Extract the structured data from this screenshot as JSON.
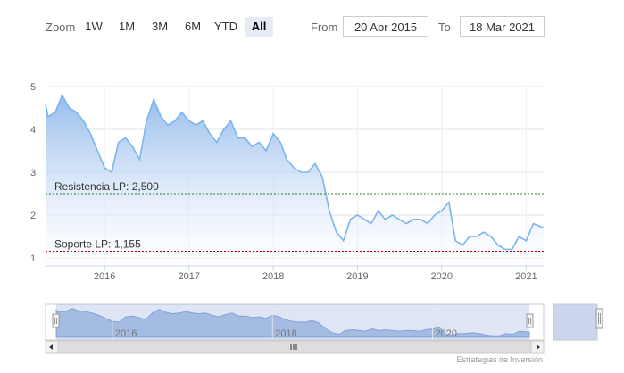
{
  "toolbar": {
    "zoom_label": "Zoom",
    "buttons": [
      "1W",
      "1M",
      "3M",
      "6M",
      "YTD",
      "All"
    ],
    "active": "All",
    "from_label": "From",
    "from_value": "20 Abr 2015",
    "to_label": "To",
    "to_value": "18 Mar 2021"
  },
  "chart_data": {
    "type": "area",
    "y_ticks": [
      "5",
      "4",
      "3",
      "2",
      "1"
    ],
    "ylim": [
      1,
      5
    ],
    "x_ticks": [
      "2016",
      "2017",
      "2018",
      "2019",
      "2020",
      "2021"
    ],
    "grid": true,
    "series": [
      {
        "x": [
          "2015-04-20",
          "2015-05-01",
          "2015-06-01",
          "2015-07-01",
          "2015-08-01",
          "2015-09-01",
          "2015-10-01",
          "2015-11-01",
          "2015-12-01",
          "2016-01-01",
          "2016-02-01",
          "2016-03-01",
          "2016-04-01",
          "2016-05-01",
          "2016-06-01",
          "2016-07-01",
          "2016-08-01",
          "2016-09-01",
          "2016-10-01",
          "2016-11-01",
          "2016-12-01",
          "2017-01-01",
          "2017-02-01",
          "2017-03-01",
          "2017-04-01",
          "2017-05-01",
          "2017-06-01",
          "2017-07-01",
          "2017-08-01",
          "2017-09-01",
          "2017-10-01",
          "2017-11-01",
          "2017-12-01",
          "2018-01-01",
          "2018-02-01",
          "2018-03-01",
          "2018-04-01",
          "2018-05-01",
          "2018-06-01",
          "2018-07-01",
          "2018-08-01",
          "2018-09-01",
          "2018-10-01",
          "2018-11-01",
          "2018-12-01",
          "2019-01-01",
          "2019-02-01",
          "2019-03-01",
          "2019-04-01",
          "2019-05-01",
          "2019-06-01",
          "2019-07-01",
          "2019-08-01",
          "2019-09-01",
          "2019-10-01",
          "2019-11-01",
          "2019-12-01",
          "2020-01-01",
          "2020-02-01",
          "2020-03-01",
          "2020-04-01",
          "2020-05-01",
          "2020-06-01",
          "2020-07-01",
          "2020-08-01",
          "2020-09-01",
          "2020-10-01",
          "2020-11-01",
          "2020-12-01",
          "2021-01-01",
          "2021-02-01",
          "2021-03-18"
        ],
        "y": [
          4.6,
          4.3,
          4.4,
          4.8,
          4.5,
          4.4,
          4.2,
          3.9,
          3.5,
          3.1,
          3.0,
          3.7,
          3.8,
          3.6,
          3.3,
          4.2,
          4.7,
          4.3,
          4.1,
          4.2,
          4.4,
          4.2,
          4.1,
          4.2,
          3.9,
          3.7,
          4.0,
          4.2,
          3.8,
          3.8,
          3.6,
          3.7,
          3.5,
          3.9,
          3.7,
          3.3,
          3.1,
          3.0,
          3.0,
          3.2,
          2.9,
          2.1,
          1.6,
          1.4,
          1.9,
          2.0,
          1.9,
          1.8,
          2.1,
          1.9,
          2.0,
          1.9,
          1.8,
          1.9,
          1.9,
          1.8,
          2.0,
          2.1,
          2.3,
          1.4,
          1.3,
          1.5,
          1.5,
          1.6,
          1.5,
          1.3,
          1.2,
          1.2,
          1.5,
          1.4,
          1.8,
          1.7
        ]
      }
    ],
    "lines": [
      {
        "label": "Resistencia LP: 2,500",
        "value": 2.5,
        "color": "#2e7d32"
      },
      {
        "label": "Soporte LP: 1,155",
        "value": 1.155,
        "color": "#b00000"
      }
    ],
    "navigator_x_ticks": [
      "2016",
      "2018",
      "2020"
    ],
    "colors": {
      "line": "#7cb5ec",
      "fill_top": "#a7c8ef",
      "nav_mask": "#cdd6ee"
    }
  },
  "credit": "Estrategias de Inversión"
}
